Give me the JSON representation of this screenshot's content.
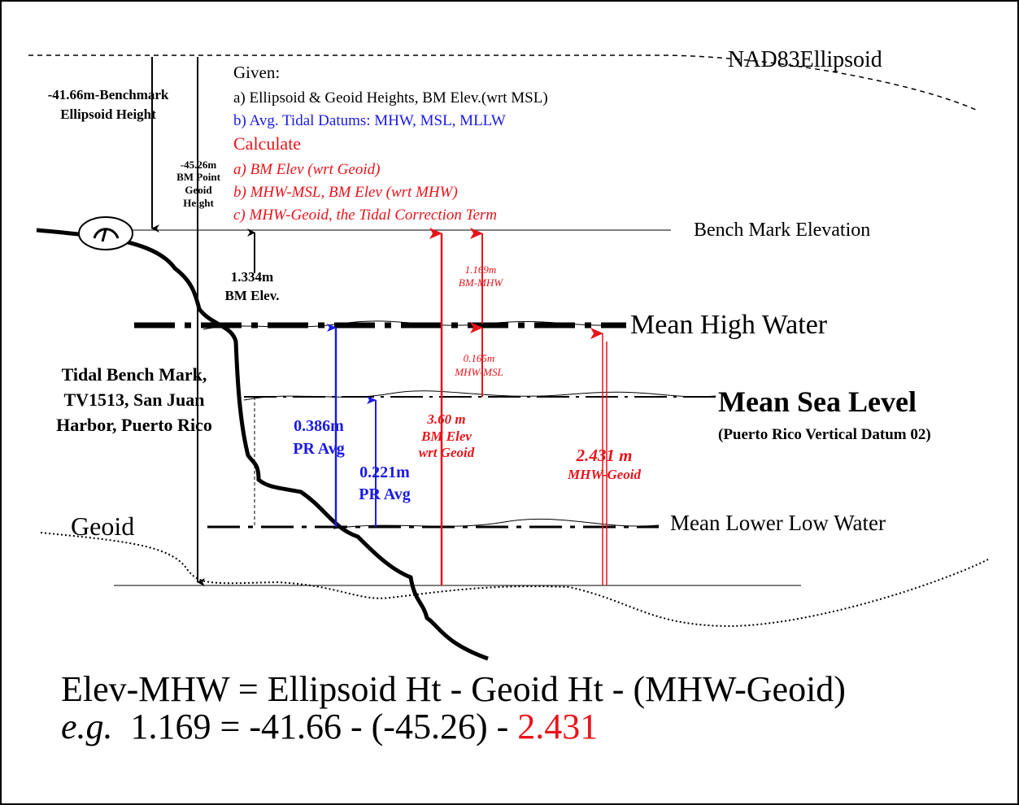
{
  "ellipsoid": "NAD83Ellipsoid",
  "benchmark_ellipsoid_height": [
    "-41.66m-Benchmark",
    "Ellipsoid Height"
  ],
  "bm_geoid_height": [
    "-45.26m",
    "BM Point",
    "Geoid",
    "Height"
  ],
  "given": {
    "title": "Given:",
    "items": [
      "a) Ellipsoid & Geoid Heights, BM Elev.(wrt MSL)",
      "b) Avg. Tidal Datums: MHW, MSL, MLLW"
    ]
  },
  "calculate": {
    "title": "Calculate",
    "items": [
      "a) BM Elev (wrt Geoid)",
      "b) MHW-MSL, BM Elev (wrt MHW)",
      "c) MHW-Geoid, the Tidal Correction Term"
    ]
  },
  "bench_mark_elevation": "Bench Mark Elevation",
  "bm_elev": [
    "1.334m",
    "BM Elev."
  ],
  "bm_mhw": [
    "1.169m",
    "BM-MHW"
  ],
  "mean_high_water": "Mean High Water",
  "mhw_msl": [
    "0.165m",
    "MHW-MSL"
  ],
  "station": [
    "Tidal Bench Mark,",
    "TV1513, San Juan",
    "Harbor, Puerto Rico"
  ],
  "mean_sea_level": "Mean Sea Level",
  "datum_note": "(Puerto Rico Vertical Datum 02)",
  "pr_avg_mhw": [
    "0.386m",
    "PR Avg"
  ],
  "bm_elev_geoid": [
    "3.60 m",
    "BM Elev",
    "wrt Geoid"
  ],
  "pr_avg_msl": [
    "0.221m",
    "PR Avg"
  ],
  "mhw_geoid": [
    "2.431 m",
    "MHW-Geoid"
  ],
  "geoid": "Geoid",
  "mean_lower_low_water": "Mean Lower Low Water",
  "formula": "Elev-MHW = Ellipsoid Ht - Geoid Ht - (MHW-Geoid)",
  "example": {
    "prefix": "e.g.",
    "body": "  1.169 = -41.66 - (-45.26) - ",
    "term": "2.431"
  }
}
